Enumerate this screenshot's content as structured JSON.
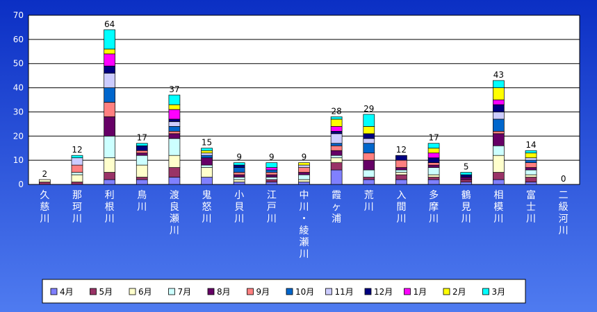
{
  "chart_data": {
    "type": "bar",
    "stacked": true,
    "title": "",
    "xlabel": "",
    "ylabel": "",
    "ylim": [
      0,
      70
    ],
    "yticks": [
      0,
      10,
      20,
      30,
      40,
      50,
      60,
      70
    ],
    "grid": true,
    "legend_position": "bottom",
    "categories": [
      "久慈川",
      "那珂川",
      "利根川",
      "鳥川",
      "渡良瀬川",
      "鬼怒川",
      "小貝川",
      "江戸川",
      "中川・綾瀬川",
      "霞ヶ浦",
      "荒川",
      "入間川",
      "多摩川",
      "鶴見川",
      "相模川",
      "富士川",
      "二級河川"
    ],
    "category_labels": [
      [
        "久",
        "慈",
        "川"
      ],
      [
        "那",
        "珂",
        "川"
      ],
      [
        "利",
        "根",
        "川"
      ],
      [
        "鳥",
        "川"
      ],
      [
        "渡",
        "良",
        "瀬",
        "川"
      ],
      [
        "鬼",
        "怒",
        "川"
      ],
      [
        "小",
        "貝",
        "川"
      ],
      [
        "江",
        "戸",
        "川"
      ],
      [
        "中",
        "川",
        "・",
        "綾",
        "瀬",
        "川"
      ],
      [
        "霞",
        "ヶ",
        "浦"
      ],
      [
        "荒",
        "川"
      ],
      [
        "入",
        "間",
        "川"
      ],
      [
        "多",
        "摩",
        "川"
      ],
      [
        "鶴",
        "見",
        "川"
      ],
      [
        "相",
        "模",
        "川"
      ],
      [
        "富",
        "士",
        "川"
      ],
      [
        "二",
        "級",
        "河",
        "川"
      ]
    ],
    "totals": [
      2,
      12,
      64,
      17,
      37,
      15,
      9,
      9,
      9,
      28,
      29,
      12,
      17,
      5,
      43,
      14,
      0
    ],
    "series": [
      {
        "name": "4月",
        "color": "#8080FF",
        "values": [
          0,
          0,
          2,
          2,
          3,
          3,
          1,
          1,
          1,
          6,
          2,
          2,
          2,
          1,
          2,
          1,
          0
        ]
      },
      {
        "name": "5月",
        "color": "#993366",
        "values": [
          1,
          1,
          3,
          1,
          4,
          0,
          0,
          1,
          0,
          3,
          1,
          2,
          1,
          1,
          3,
          2,
          0
        ]
      },
      {
        "name": "6月",
        "color": "#FFFFCC",
        "values": [
          1,
          3,
          6,
          5,
          5,
          4,
          1,
          0,
          1,
          2,
          0,
          1,
          1,
          0,
          7,
          1,
          0
        ]
      },
      {
        "name": "7月",
        "color": "#CCFFFF",
        "values": [
          0,
          1,
          9,
          4,
          7,
          1,
          1,
          1,
          2,
          1,
          3,
          1,
          3,
          0,
          4,
          2,
          0
        ]
      },
      {
        "name": "8月",
        "color": "#660066",
        "values": [
          0,
          0,
          8,
          1,
          2,
          3,
          1,
          1,
          1,
          2,
          4,
          1,
          1,
          1,
          5,
          1,
          0
        ]
      },
      {
        "name": "9月",
        "color": "#FF8080",
        "values": [
          0,
          3,
          6,
          1,
          1,
          0,
          1,
          1,
          2,
          2,
          3,
          3,
          1,
          0,
          1,
          2,
          0
        ]
      },
      {
        "name": "10月",
        "color": "#0066CC",
        "values": [
          0,
          0,
          6,
          0,
          2,
          1,
          2,
          1,
          0,
          1,
          4,
          0,
          0,
          0,
          5,
          1,
          0
        ]
      },
      {
        "name": "11月",
        "color": "#CCCCFF",
        "values": [
          0,
          3,
          6,
          0,
          2,
          1,
          0,
          0,
          1,
          4,
          2,
          0,
          0,
          0,
          3,
          1,
          0
        ]
      },
      {
        "name": "12月",
        "color": "#000080",
        "values": [
          0,
          0,
          3,
          2,
          1,
          0,
          1,
          0,
          0,
          1,
          2,
          2,
          2,
          1,
          3,
          0,
          0
        ]
      },
      {
        "name": "1月",
        "color": "#FF00FF",
        "values": [
          0,
          0,
          5,
          0,
          4,
          0,
          0,
          1,
          0,
          2,
          0,
          0,
          2,
          0,
          2,
          0,
          0
        ]
      },
      {
        "name": "2月",
        "color": "#FFFF00",
        "values": [
          0,
          0,
          2,
          0,
          2,
          1,
          0,
          0,
          1,
          3,
          3,
          0,
          2,
          0,
          5,
          2,
          0
        ]
      },
      {
        "name": "3月",
        "color": "#00FFFF",
        "values": [
          0,
          1,
          8,
          1,
          4,
          1,
          1,
          2,
          0,
          1,
          5,
          0,
          2,
          1,
          3,
          1,
          0
        ]
      }
    ]
  },
  "colors": {
    "background_gradient_top": "#0B2FC4",
    "background_gradient_bottom": "#4F7BF0",
    "plot_background": "#FFFFFF",
    "legend_background": "#FFFFFF",
    "axis_text": "#FFFFFF",
    "total_label": "#000000"
  }
}
